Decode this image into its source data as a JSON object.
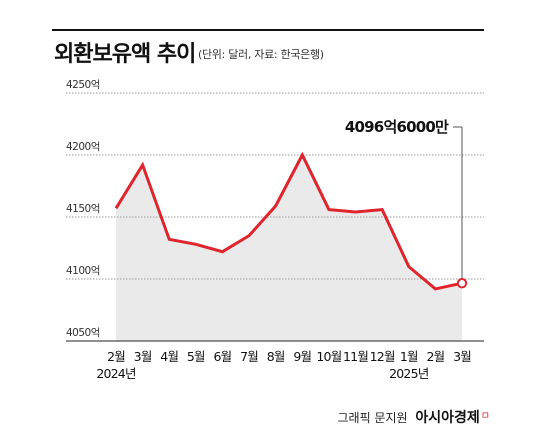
{
  "header": {
    "title": "외환보유액 추이",
    "subtitle": "(단위: 달러, 자료: 한국은행)"
  },
  "chart_data": {
    "type": "area",
    "title": "외환보유액 추이",
    "unit_note": "(단위: 달러, 자료: 한국은행)",
    "categories": [
      "2월",
      "3월",
      "4월",
      "5월",
      "6월",
      "7월",
      "8월",
      "9월",
      "10월",
      "11월",
      "12월",
      "1월",
      "2월",
      "3월"
    ],
    "year_labels": [
      {
        "index": 0,
        "text": "2024년"
      },
      {
        "index": 11,
        "text": "2025년"
      }
    ],
    "series": [
      {
        "values": [
          4157,
          4192,
          4132,
          4128,
          4122,
          4135,
          4159,
          4200,
          4156,
          4154,
          4156,
          4110,
          4092,
          4096.6
        ]
      }
    ],
    "y_ticks": [
      "4250억",
      "4200억",
      "4150억",
      "4100억",
      "4050억"
    ],
    "ylim": [
      4050,
      4250
    ],
    "annotation": {
      "index": 13,
      "text": "4096억6000만"
    },
    "grid": true,
    "colors": {
      "line": "#e0242b",
      "fill": "#eaeaea",
      "grid": "#999999"
    }
  },
  "footer": {
    "credit": "그래픽 문지원",
    "brand": "아시아경제",
    "mark": "ㅁ"
  }
}
